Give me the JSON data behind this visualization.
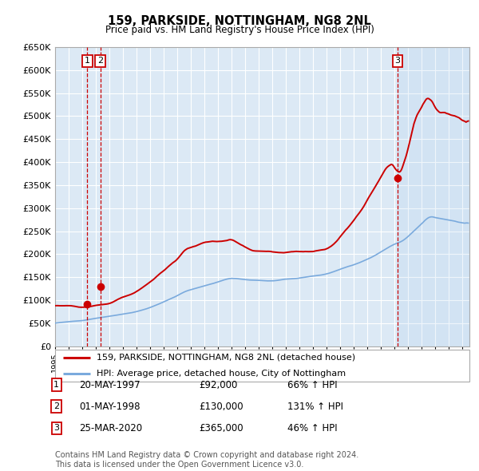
{
  "title": "159, PARKSIDE, NOTTINGHAM, NG8 2NL",
  "subtitle": "Price paid vs. HM Land Registry's House Price Index (HPI)",
  "background_color": "#ffffff",
  "plot_bg_color": "#dce9f5",
  "grid_color": "#ffffff",
  "red_line_color": "#cc0000",
  "blue_line_color": "#7aaadd",
  "transaction_color": "#cc0000",
  "transactions": [
    {
      "id": 1,
      "date_num": 1997.37,
      "price": 92000,
      "label": "1",
      "date_str": "20-MAY-1997",
      "price_str": "£92,000",
      "hpi_str": "66% ↑ HPI"
    },
    {
      "id": 2,
      "date_num": 1998.33,
      "price": 130000,
      "label": "2",
      "date_str": "01-MAY-1998",
      "price_str": "£130,000",
      "hpi_str": "131% ↑ HPI"
    },
    {
      "id": 3,
      "date_num": 2020.21,
      "price": 365000,
      "label": "3",
      "date_str": "25-MAR-2020",
      "price_str": "£365,000",
      "hpi_str": "46% ↑ HPI"
    }
  ],
  "ylim": [
    0,
    650000
  ],
  "yticks": [
    0,
    50000,
    100000,
    150000,
    200000,
    250000,
    300000,
    350000,
    400000,
    450000,
    500000,
    550000,
    600000,
    650000
  ],
  "xlim_start": 1995.0,
  "xlim_end": 2025.5,
  "legend_red": "159, PARKSIDE, NOTTINGHAM, NG8 2NL (detached house)",
  "legend_blue": "HPI: Average price, detached house, City of Nottingham",
  "footnote": "Contains HM Land Registry data © Crown copyright and database right 2024.\nThis data is licensed under the Open Government Licence v3.0.",
  "shade_start": 2020.21
}
